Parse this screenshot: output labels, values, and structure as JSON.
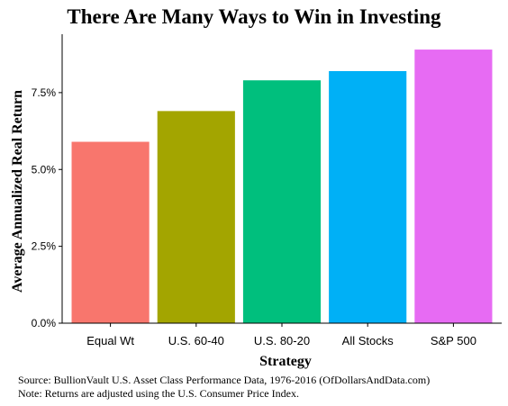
{
  "chart_data": {
    "type": "bar",
    "title": "There Are Many Ways to Win in Investing",
    "xlabel": "Strategy",
    "ylabel": "Average Annualized Real Return",
    "categories": [
      "Equal Wt",
      "U.S. 60-40",
      "U.S. 80-20",
      "All Stocks",
      "S&P 500"
    ],
    "values": [
      5.9,
      6.9,
      7.9,
      8.2,
      8.9
    ],
    "colors": [
      "#F8766D",
      "#A3A500",
      "#00BF7D",
      "#00B0F6",
      "#E76BF3"
    ],
    "ylim": [
      0,
      9.4
    ],
    "yticks": [
      0,
      2.5,
      5.0,
      7.5
    ],
    "ytick_labels": [
      "0.0%",
      "2.5%",
      "5.0%",
      "7.5%"
    ],
    "grid": false,
    "legend": "none"
  },
  "footer": {
    "source": "Source: BullionVault U.S. Asset Class Performance Data, 1976-2016 (OfDollarsAndData.com)",
    "note": "Note:  Returns are adjusted using the U.S. Consumer Price Index."
  }
}
